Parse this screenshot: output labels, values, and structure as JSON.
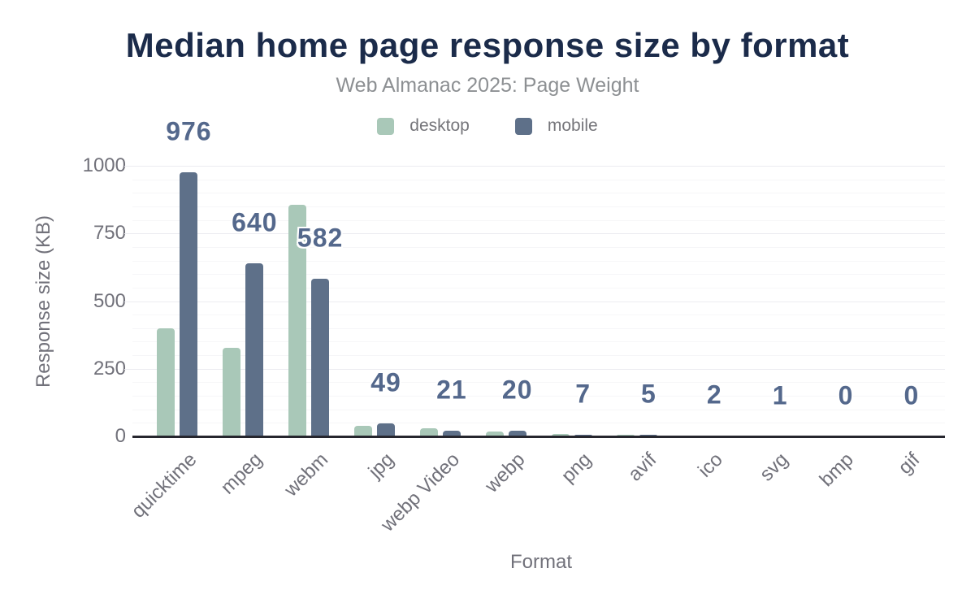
{
  "colors": {
    "title": "#1b2b4a",
    "subtitle": "#8d9093",
    "legend_text": "#75757a",
    "axis_text": "#71717a",
    "axis_line": "#26262e",
    "data_label": "#54688c",
    "grid_minor": "#f6f6f8",
    "grid_major": "#ececf0",
    "desktop": "#a9c8b8",
    "mobile": "#5e7089"
  },
  "chart_data": {
    "type": "bar",
    "title": "Median home page response size by format",
    "subtitle": "Web Almanac 2025: Page Weight",
    "xlabel": "Format",
    "ylabel": "Response size (KB)",
    "categories": [
      "quicktime",
      "mpeg",
      "webm",
      "jpg",
      "webp Video",
      "webp",
      "png",
      "avif",
      "ico",
      "svg",
      "bmp",
      "gif"
    ],
    "series": [
      {
        "name": "desktop",
        "color": "#a9c8b8",
        "values": [
          400,
          327,
          856,
          40,
          30,
          18,
          8,
          6,
          2,
          1,
          0,
          0
        ]
      },
      {
        "name": "mobile",
        "color": "#5e7089",
        "values": [
          976,
          640,
          582,
          49,
          21,
          20,
          7,
          5,
          2,
          1,
          0,
          0
        ]
      }
    ],
    "data_labels": [
      "976",
      "640",
      "582",
      "49",
      "21",
      "20",
      "7",
      "5",
      "2",
      "1",
      "0",
      "0"
    ],
    "data_labels_series": "mobile",
    "y_ticks": [
      0,
      250,
      500,
      750,
      1000
    ],
    "ylim": [
      0,
      1000
    ],
    "minor_grid_step": 50,
    "major_grid_step": 250,
    "grid": true,
    "legend_position": "top"
  }
}
